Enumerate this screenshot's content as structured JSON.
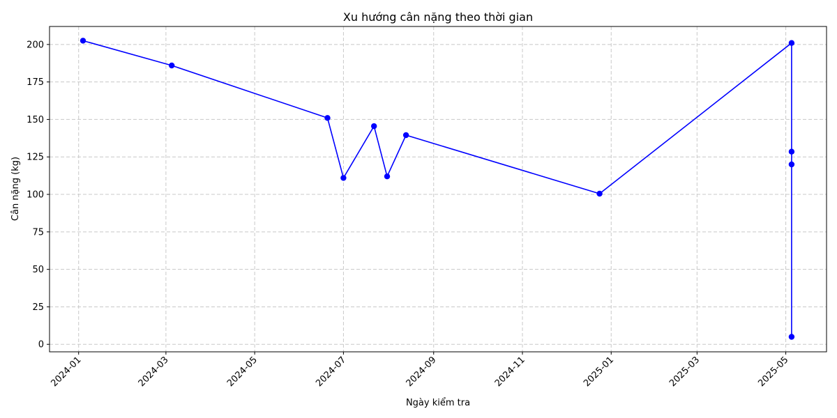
{
  "chart_data": {
    "type": "line",
    "title": "Xu hướng cân nặng theo thời gian",
    "xlabel": "Ngày kiểm tra",
    "ylabel": "Cân nặng (kg)",
    "x": [
      "2024-01-04",
      "2024-03-05",
      "2024-06-20",
      "2024-07-01",
      "2024-07-22",
      "2024-07-31",
      "2024-08-13",
      "2024-12-24",
      "2025-05-05",
      "2025-05-05",
      "2025-05-05",
      "2025-05-05"
    ],
    "y": [
      202.5,
      186,
      151,
      111,
      145.5,
      112,
      139.5,
      100.5,
      201,
      128.5,
      120,
      5
    ],
    "xlim": [
      "2023-12-12",
      "2025-05-29"
    ],
    "ylim": [
      -5,
      212
    ],
    "x_ticks": [
      "2024-01",
      "2024-03",
      "2024-05",
      "2024-07",
      "2024-09",
      "2024-11",
      "2025-01",
      "2025-03",
      "2025-05"
    ],
    "y_ticks": [
      0,
      25,
      50,
      75,
      100,
      125,
      150,
      175,
      200
    ],
    "grid": true,
    "line_color": "#0000ff",
    "marker": "circle"
  }
}
